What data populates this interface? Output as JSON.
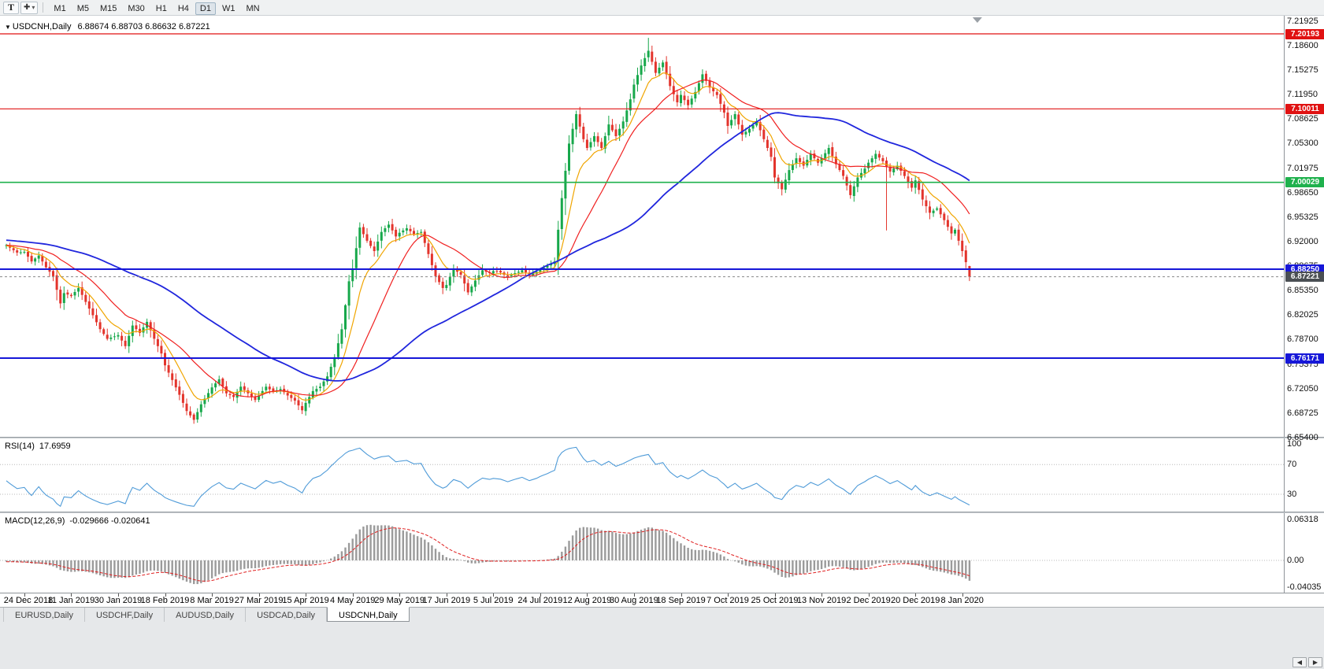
{
  "toolbar": {
    "text_tool": "T",
    "timeframes": [
      "M1",
      "M5",
      "M15",
      "M30",
      "H1",
      "H4",
      "D1",
      "W1",
      "MN"
    ],
    "active_timeframe": "D1"
  },
  "icons": {
    "crosshair_tool": "✚",
    "dropdown_arrow": "▾",
    "chart_dropdown": "▼",
    "scroll_left": "◀",
    "scroll_right": "▶"
  },
  "chart": {
    "symbol_period": "USDCNH,Daily",
    "ohlc_line": "6.88674 6.88703 6.86632 6.87221"
  },
  "rsi_panel": {
    "name": "RSI(14)",
    "value": "17.6959"
  },
  "macd_panel": {
    "name": "MACD(12,26,9)",
    "values": "-0.029666 -0.020641"
  },
  "tabs": [
    "EURUSD,Daily",
    "USDCHF,Daily",
    "AUDUSD,Daily",
    "USDCAD,Daily",
    "USDCNH,Daily"
  ],
  "active_tab": "USDCNH,Daily",
  "chart_data": {
    "type": "candlestick",
    "symbol": "USDCNH",
    "timeframe": "Daily",
    "current_bar": {
      "open": 6.88674,
      "high": 6.88703,
      "low": 6.86632,
      "close": 6.87221
    },
    "price_axis_labels": [
      "7.21925",
      "7.18600",
      "7.15275",
      "7.11950",
      "7.08625",
      "7.05300",
      "7.01975",
      "6.98650",
      "6.95325",
      "6.92000",
      "6.88675",
      "6.85350",
      "6.82025",
      "6.78700",
      "6.75375",
      "6.72050",
      "6.68725",
      "6.65400"
    ],
    "date_axis_labels": [
      "24 Dec 2018",
      "11 Jan 2019",
      "30 Jan 2019",
      "18 Feb 2019",
      "8 Mar 2019",
      "27 Mar 2019",
      "15 Apr 2019",
      "4 May 2019",
      "29 May 2019",
      "17 Jun 2019",
      "5 Jul 2019",
      "24 Jul 2019",
      "12 Aug 2019",
      "30 Aug 2019",
      "18 Sep 2019",
      "7 Oct 2019",
      "25 Oct 2019",
      "13 Nov 2019",
      "2 Dec 2019",
      "20 Dec 2019",
      "8 Jan 2020"
    ],
    "horizontal_lines": [
      {
        "price": 7.20193,
        "badge": "7.20193",
        "color": "#e01212",
        "width": 1.2
      },
      {
        "price": 7.10011,
        "badge": "7.10011",
        "color": "#e01212",
        "width": 1.2
      },
      {
        "price": 7.00029,
        "badge": "7.00029",
        "color": "#1fb14d",
        "width": 1.6
      },
      {
        "price": 6.8825,
        "badge": "6.88250",
        "color": "#1617d8",
        "width": 2
      },
      {
        "price": 6.76171,
        "badge": "6.76171",
        "color": "#1617d8",
        "width": 2
      }
    ],
    "current_price_badge": {
      "price": 6.87221,
      "label": "6.87221",
      "color": "#4a4f54"
    },
    "num_candles": 268,
    "candle_colors": {
      "up": "#17a84b",
      "down": "#e3342c"
    },
    "close_waypoints": [
      [
        0,
        6.915
      ],
      [
        3,
        6.905
      ],
      [
        5,
        6.906
      ],
      [
        7,
        6.893
      ],
      [
        9,
        6.901
      ],
      [
        11,
        6.885
      ],
      [
        13,
        6.873
      ],
      [
        15,
        6.836
      ],
      [
        16,
        6.85
      ],
      [
        18,
        6.846
      ],
      [
        20,
        6.857
      ],
      [
        22,
        6.838
      ],
      [
        24,
        6.82
      ],
      [
        26,
        6.801
      ],
      [
        28,
        6.788
      ],
      [
        31,
        6.793
      ],
      [
        33,
        6.778
      ],
      [
        35,
        6.806
      ],
      [
        37,
        6.796
      ],
      [
        39,
        6.811
      ],
      [
        41,
        6.788
      ],
      [
        43,
        6.768
      ],
      [
        44,
        6.752
      ],
      [
        46,
        6.732
      ],
      [
        48,
        6.712
      ],
      [
        50,
        6.69
      ],
      [
        52,
        6.678
      ],
      [
        54,
        6.699
      ],
      [
        57,
        6.722
      ],
      [
        59,
        6.733
      ],
      [
        61,
        6.714
      ],
      [
        63,
        6.709
      ],
      [
        65,
        6.723
      ],
      [
        67,
        6.714
      ],
      [
        69,
        6.705
      ],
      [
        70,
        6.711
      ],
      [
        72,
        6.723
      ],
      [
        74,
        6.716
      ],
      [
        76,
        6.72
      ],
      [
        78,
        6.711
      ],
      [
        80,
        6.704
      ],
      [
        82,
        6.691
      ],
      [
        83,
        6.701
      ],
      [
        85,
        6.717
      ],
      [
        87,
        6.723
      ],
      [
        89,
        6.737
      ],
      [
        91,
        6.763
      ],
      [
        93,
        6.801
      ],
      [
        95,
        6.866
      ],
      [
        96,
        6.883
      ],
      [
        98,
        6.939
      ],
      [
        100,
        6.921
      ],
      [
        102,
        6.907
      ],
      [
        104,
        6.933
      ],
      [
        106,
        6.943
      ],
      [
        108,
        6.927
      ],
      [
        109,
        6.932
      ],
      [
        111,
        6.938
      ],
      [
        113,
        6.93
      ],
      [
        115,
        6.933
      ],
      [
        117,
        6.903
      ],
      [
        119,
        6.873
      ],
      [
        121,
        6.857
      ],
      [
        122,
        6.861
      ],
      [
        124,
        6.883
      ],
      [
        126,
        6.875
      ],
      [
        128,
        6.851
      ],
      [
        130,
        6.867
      ],
      [
        132,
        6.881
      ],
      [
        134,
        6.877
      ],
      [
        135,
        6.88
      ],
      [
        137,
        6.878
      ],
      [
        139,
        6.872
      ],
      [
        141,
        6.877
      ],
      [
        143,
        6.881
      ],
      [
        145,
        6.875
      ],
      [
        147,
        6.879
      ],
      [
        148,
        6.882
      ],
      [
        150,
        6.887
      ],
      [
        152,
        6.893
      ],
      [
        154,
        6.979
      ],
      [
        156,
        7.053
      ],
      [
        158,
        7.093
      ],
      [
        160,
        7.059
      ],
      [
        161,
        7.047
      ],
      [
        163,
        7.063
      ],
      [
        165,
        7.047
      ],
      [
        167,
        7.079
      ],
      [
        169,
        7.063
      ],
      [
        171,
        7.083
      ],
      [
        173,
        7.113
      ],
      [
        174,
        7.133
      ],
      [
        176,
        7.159
      ],
      [
        178,
        7.179
      ],
      [
        180,
        7.149
      ],
      [
        182,
        7.163
      ],
      [
        184,
        7.131
      ],
      [
        186,
        7.109
      ],
      [
        187,
        7.119
      ],
      [
        189,
        7.105
      ],
      [
        191,
        7.123
      ],
      [
        193,
        7.147
      ],
      [
        195,
        7.129
      ],
      [
        197,
        7.119
      ],
      [
        199,
        7.095
      ],
      [
        200,
        7.077
      ],
      [
        202,
        7.093
      ],
      [
        204,
        7.065
      ],
      [
        206,
        7.073
      ],
      [
        208,
        7.083
      ],
      [
        210,
        7.059
      ],
      [
        212,
        7.035
      ],
      [
        213,
        7.007
      ],
      [
        215,
        6.991
      ],
      [
        217,
        7.017
      ],
      [
        219,
        7.033
      ],
      [
        221,
        7.023
      ],
      [
        223,
        7.039
      ],
      [
        225,
        7.027
      ],
      [
        226,
        7.033
      ],
      [
        228,
        7.047
      ],
      [
        230,
        7.025
      ],
      [
        232,
        7.009
      ],
      [
        234,
        6.983
      ],
      [
        236,
        7.007
      ],
      [
        238,
        7.019
      ],
      [
        239,
        7.027
      ],
      [
        241,
        7.039
      ],
      [
        243,
        7.029
      ],
      [
        245,
        7.015
      ],
      [
        247,
        7.023
      ],
      [
        249,
        7.009
      ],
      [
        251,
        6.993
      ],
      [
        252,
        7.003
      ],
      [
        254,
        6.977
      ],
      [
        256,
        6.959
      ],
      [
        258,
        6.965
      ],
      [
        260,
        6.949
      ],
      [
        261,
        6.94
      ],
      [
        262,
        6.931
      ],
      [
        263,
        6.936
      ],
      [
        264,
        6.921
      ],
      [
        265,
        6.907
      ],
      [
        266,
        6.892
      ],
      [
        267,
        6.8722
      ]
    ],
    "spike_high": {
      "index": 178,
      "high": 7.1965
    },
    "long_wick_low": {
      "index": 244,
      "low": 6.935
    },
    "pre_trend": {
      "from": 6.932,
      "to": 6.912,
      "bars": 60
    },
    "moving_averages": [
      {
        "type": "ema",
        "period": 9,
        "color": "#f0a500"
      },
      {
        "type": "sma",
        "period": 20,
        "color": "#f02020"
      },
      {
        "type": "sma",
        "period": 60,
        "color": "#2026dd"
      }
    ],
    "rsi": {
      "period": 14,
      "current": 17.6959,
      "color": "#4f9bd8",
      "levels": [
        100,
        70,
        30
      ],
      "axis_labels": [
        "100",
        "70",
        "30"
      ]
    },
    "macd": {
      "fast": 12,
      "slow": 26,
      "signal_period": 9,
      "macd_current": -0.029666,
      "signal_current": -0.020641,
      "axis_labels": [
        "0.06318",
        "0.00",
        "-0.04035"
      ],
      "axis_values": [
        0.06318,
        0,
        -0.04035
      ],
      "histogram_color": "#9b9b9b",
      "signal_color": "#e02020"
    }
  }
}
